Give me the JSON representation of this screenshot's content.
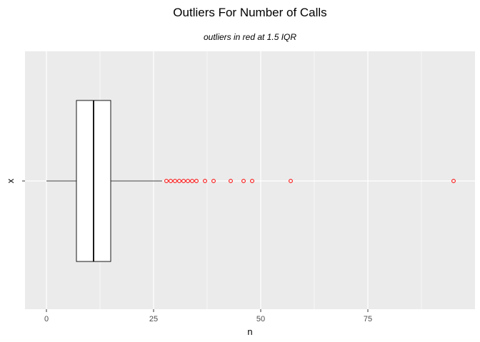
{
  "chart_data": {
    "type": "boxplot",
    "title": "Outliers For Number of Calls",
    "subtitle": "outliers in red at 1.5 IQR",
    "xlabel": "n",
    "ylabel": "x",
    "category": "",
    "xlim": [
      -5,
      100
    ],
    "x_ticks": [
      0,
      25,
      50,
      75
    ],
    "x_tick_labels": [
      "0",
      "25",
      "50",
      "75"
    ],
    "box": {
      "whisker_low": 0,
      "q1": 7,
      "median": 11,
      "q3": 15,
      "whisker_high": 27
    },
    "outliers": [
      28,
      29,
      30,
      31,
      32,
      33,
      34,
      35,
      37,
      39,
      43,
      46,
      48,
      57,
      95
    ],
    "grid": true,
    "colors": {
      "panel": "#ebebeb",
      "grid_major": "#ffffff",
      "outlier": "#ff0000",
      "box_fill": "#ffffff",
      "box_line": "#000000",
      "tick_text": "#4d4d4d"
    }
  }
}
